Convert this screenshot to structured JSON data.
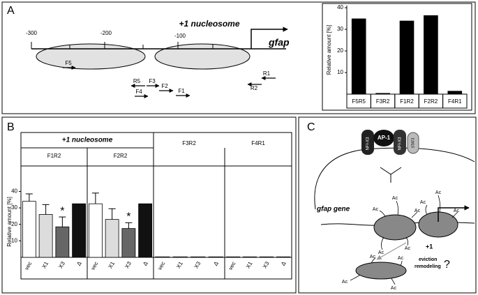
{
  "panel_labels": [
    "A",
    "B",
    "C"
  ],
  "panel_a": {
    "positions": [
      "-300",
      "-200",
      "-100"
    ],
    "nucleosome_label": "+1 nucleosome",
    "gene_label": "gfap",
    "primers": [
      "F5",
      "R5",
      "F3",
      "F4",
      "F2",
      "F1",
      "R2",
      "R1"
    ]
  },
  "chart_data": [
    {
      "type": "bar",
      "y_label": "Relative amount [%]",
      "categories": [
        "F5R5",
        "F3R2",
        "F1R2",
        "F2R2",
        "F4R1"
      ],
      "values": [
        35,
        0.5,
        34,
        36.5,
        1.5
      ],
      "color": "#000000",
      "ylim": [
        0,
        41
      ],
      "yticks": [
        10,
        20,
        30,
        40
      ]
    },
    {
      "type": "grouped_bar",
      "header": "+1 nucleosome",
      "y_label": "Relative amount [%]",
      "categories": [
        "vec",
        "X1",
        "X3",
        "Δ"
      ],
      "colors": [
        "#ffffff",
        "#dcdcdc",
        "#666666",
        "#111111"
      ],
      "groups": [
        {
          "name": "F1R2",
          "values": [
            34,
            26,
            18.5,
            32.5
          ],
          "errors": [
            4.5,
            6,
            6,
            null
          ],
          "annotations": [
            null,
            null,
            "*",
            null
          ]
        },
        {
          "name": "F2R2",
          "values": [
            32.5,
            23,
            17.5,
            32.5
          ],
          "errors": [
            6.5,
            6.5,
            3.5,
            null
          ],
          "annotations": [
            null,
            null,
            "*",
            null
          ]
        },
        {
          "name": "F3R2",
          "values": [
            0.3,
            0.3,
            0.3,
            0.3
          ],
          "errors": [
            null,
            null,
            null,
            null
          ],
          "annotations": [
            null,
            null,
            null,
            null
          ]
        },
        {
          "name": "F4R1",
          "values": [
            0.3,
            0.3,
            0.3,
            0.3
          ],
          "errors": [
            null,
            null,
            null,
            null
          ],
          "annotations": [
            null,
            null,
            null,
            null
          ]
        }
      ],
      "ylim": [
        0,
        44
      ],
      "yticks": [
        10,
        20,
        30,
        40
      ]
    }
  ],
  "panel_c": {
    "factors": [
      "NFI-X3",
      "AP-1",
      "NFI-X3",
      "STAT3"
    ],
    "gene_label": "gfap gene",
    "position_label": "+1",
    "process_labels": [
      "eviction",
      "remodeling"
    ],
    "question": "?",
    "acetyl_labels": [
      "Ac",
      "Ac",
      "Ac",
      "Ac",
      "Ac",
      "Ac",
      "Ac",
      "Ac",
      "Ac",
      "Ac",
      "Ac",
      "Ac"
    ]
  }
}
